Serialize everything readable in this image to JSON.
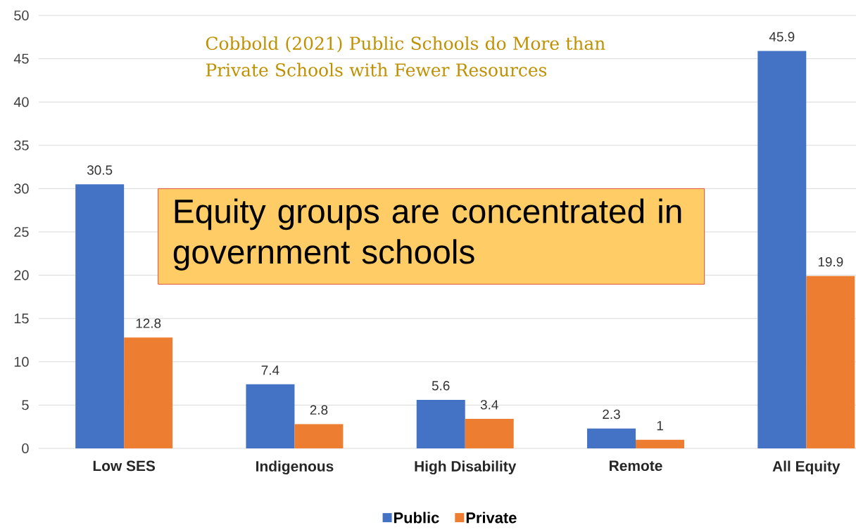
{
  "chart_data": {
    "type": "bar",
    "categories": [
      "Low SES",
      "Indigenous",
      "High Disability",
      "Remote",
      "All Equity"
    ],
    "series": [
      {
        "name": "Public",
        "color": "#4472c4",
        "values": [
          30.5,
          7.4,
          5.6,
          2.3,
          45.9
        ]
      },
      {
        "name": "Private",
        "color": "#ed7d31",
        "values": [
          12.8,
          2.8,
          3.4,
          1,
          19.9
        ]
      }
    ],
    "ylim": [
      0,
      50
    ],
    "yticks": [
      0,
      5,
      10,
      15,
      20,
      25,
      30,
      35,
      40,
      45,
      50
    ],
    "grid": "y",
    "legend": "bottom",
    "data_labels": true,
    "annotations": [
      "Cobbold (2021) Public Schools do More than Private Schools with Fewer Resources",
      "Equity groups are concentrated in government schools"
    ]
  }
}
